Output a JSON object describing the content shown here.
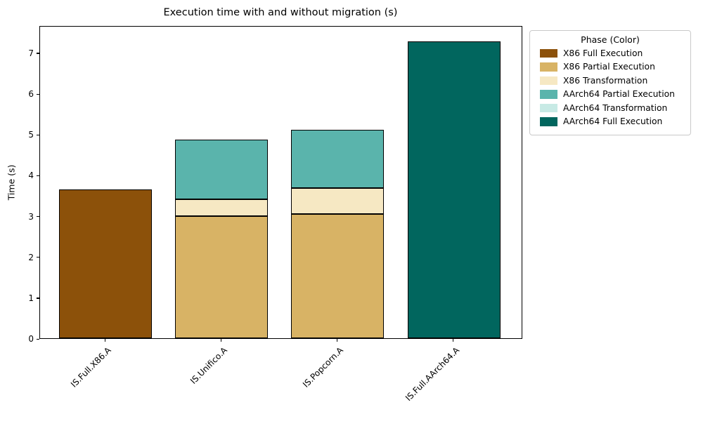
{
  "chart_data": {
    "type": "bar",
    "stacked": true,
    "title": "Execution time with and without migration (s)",
    "ylabel": "Time (s)",
    "xlabel": "",
    "categories": [
      "IS.Full.X86.A",
      "IS.Unifico.A",
      "IS.Popcorn.A",
      "IS.Full.AArch64.A"
    ],
    "series": [
      {
        "name": "X86 Full Execution",
        "color": "#8c510a",
        "values": [
          3.65,
          0,
          0,
          0
        ]
      },
      {
        "name": "X86 Partial Execution",
        "color": "#d8b365",
        "values": [
          0,
          2.99,
          3.05,
          0
        ]
      },
      {
        "name": "X86 Transformation",
        "color": "#f6e8c3",
        "values": [
          0,
          0.41,
          0.63,
          0
        ]
      },
      {
        "name": "AArch64 Partial Execution",
        "color": "#5ab4ac",
        "values": [
          0,
          1.47,
          1.42,
          0
        ]
      },
      {
        "name": "AArch64 Transformation",
        "color": "#c7eae5",
        "values": [
          0,
          0,
          0,
          0
        ]
      },
      {
        "name": "AArch64 Full Execution",
        "color": "#01665e",
        "values": [
          0,
          0,
          0,
          7.28
        ]
      }
    ],
    "totals": [
      3.65,
      4.87,
      5.1,
      7.28
    ],
    "ylim": [
      0,
      7.67
    ],
    "yticks": [
      0,
      1,
      2,
      3,
      4,
      5,
      6,
      7
    ],
    "legend": {
      "title": "Phase (Color)",
      "position": "upper-right-outside"
    },
    "bar_edge_color": "#000000",
    "grid": false
  }
}
